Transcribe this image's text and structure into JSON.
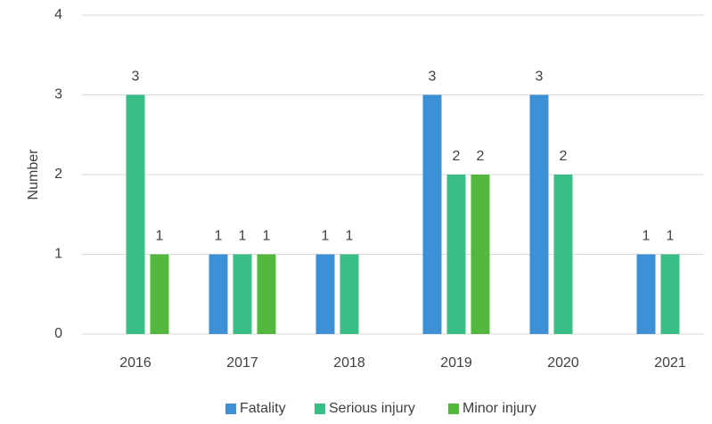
{
  "chart_data": {
    "type": "bar",
    "categories": [
      "2016",
      "2017",
      "2018",
      "2019",
      "2020",
      "2021"
    ],
    "series": [
      {
        "name": "Fatality",
        "color": "#3d8fd6",
        "values": [
          null,
          1,
          1,
          3,
          3,
          1
        ]
      },
      {
        "name": "Serious injury",
        "color": "#3bbd88",
        "values": [
          3,
          1,
          1,
          2,
          2,
          1
        ]
      },
      {
        "name": "Minor injury",
        "color": "#55b83e",
        "values": [
          1,
          1,
          null,
          2,
          null,
          null
        ]
      }
    ],
    "ylabel": "Number",
    "ylim": [
      0,
      4
    ],
    "yticks": [
      0,
      1,
      2,
      3,
      4
    ],
    "grid": true,
    "legend": "bottom"
  }
}
